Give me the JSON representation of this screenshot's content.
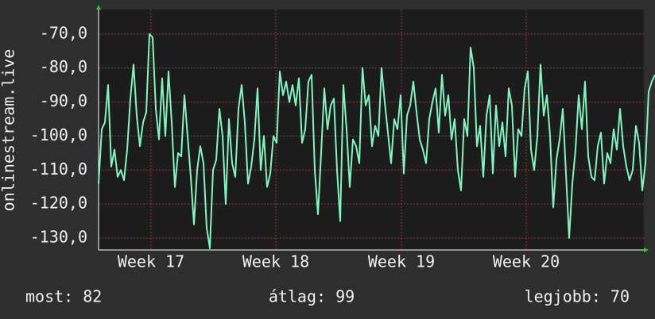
{
  "chart_data": {
    "type": "line",
    "y_label": "onlinestream.live",
    "series": [
      {
        "name": "onlinestream.live",
        "color": "#80f5c0",
        "values": [
          -114,
          -98,
          -96,
          -85,
          -109,
          -104,
          -112,
          -110,
          -113,
          -104,
          -89,
          -79,
          -94,
          -103,
          -96,
          -93,
          -70,
          -71,
          -92,
          -101,
          -83,
          -100,
          -81,
          -96,
          -115,
          -105,
          -106,
          -88,
          -100,
          -112,
          -126,
          -110,
          -103,
          -108,
          -127,
          -133,
          -110,
          -107,
          -92,
          -100,
          -120,
          -95,
          -108,
          -112,
          -92,
          -85,
          -96,
          -114,
          -109,
          -101,
          -86,
          -110,
          -100,
          -115,
          -111,
          -100,
          -102,
          -81,
          -88,
          -84,
          -90,
          -85,
          -91,
          -83,
          -102,
          -98,
          -84,
          -82,
          -110,
          -123,
          -105,
          -86,
          -98,
          -91,
          -89,
          -110,
          -125,
          -85,
          -98,
          -115,
          -101,
          -103,
          -108,
          -80,
          -91,
          -88,
          -103,
          -97,
          -100,
          -80,
          -90,
          -99,
          -108,
          -95,
          -98,
          -88,
          -111,
          -94,
          -91,
          -84,
          -93,
          -101,
          -104,
          -108,
          -95,
          -90,
          -86,
          -99,
          -82,
          -94,
          -88,
          -101,
          -95,
          -110,
          -116,
          -95,
          -100,
          -74,
          -80,
          -103,
          -97,
          -112,
          -94,
          -88,
          -111,
          -91,
          -103,
          -96,
          -106,
          -86,
          -91,
          -112,
          -98,
          -100,
          -86,
          -81,
          -104,
          -110,
          -100,
          -79,
          -94,
          -88,
          -100,
          -121,
          -107,
          -101,
          -92,
          -111,
          -130,
          -114,
          -104,
          -88,
          -98,
          -84,
          -106,
          -112,
          -113,
          -103,
          -99,
          -114,
          -105,
          -108,
          -98,
          -104,
          -92,
          -103,
          -109,
          -113,
          -110,
          -97,
          -102,
          -116,
          -108,
          -87,
          -84,
          -82
        ]
      }
    ],
    "xlim": [
      0,
      171.5
    ],
    "xticks": [
      {
        "value": 16.5,
        "label": "Week 17"
      },
      {
        "value": 55.75,
        "label": "Week 18"
      },
      {
        "value": 95.25,
        "label": "Week 19"
      },
      {
        "value": 134.5,
        "label": "Week 20"
      }
    ],
    "ylim": [
      -133.5,
      -62.8
    ],
    "yticks": [
      {
        "value": -130,
        "label": "-130,0"
      },
      {
        "value": -120,
        "label": "-120,0"
      },
      {
        "value": -110,
        "label": "-110,0"
      },
      {
        "value": -100,
        "label": "-100,0"
      },
      {
        "value": -90,
        "label": "-90,0"
      },
      {
        "value": -80,
        "label": "-80,0"
      },
      {
        "value": -70,
        "label": "-70,0"
      }
    ],
    "grid": true,
    "footer": {
      "current": "most: 82",
      "average": "átlag: 99",
      "best": "legjobb: 70"
    }
  }
}
